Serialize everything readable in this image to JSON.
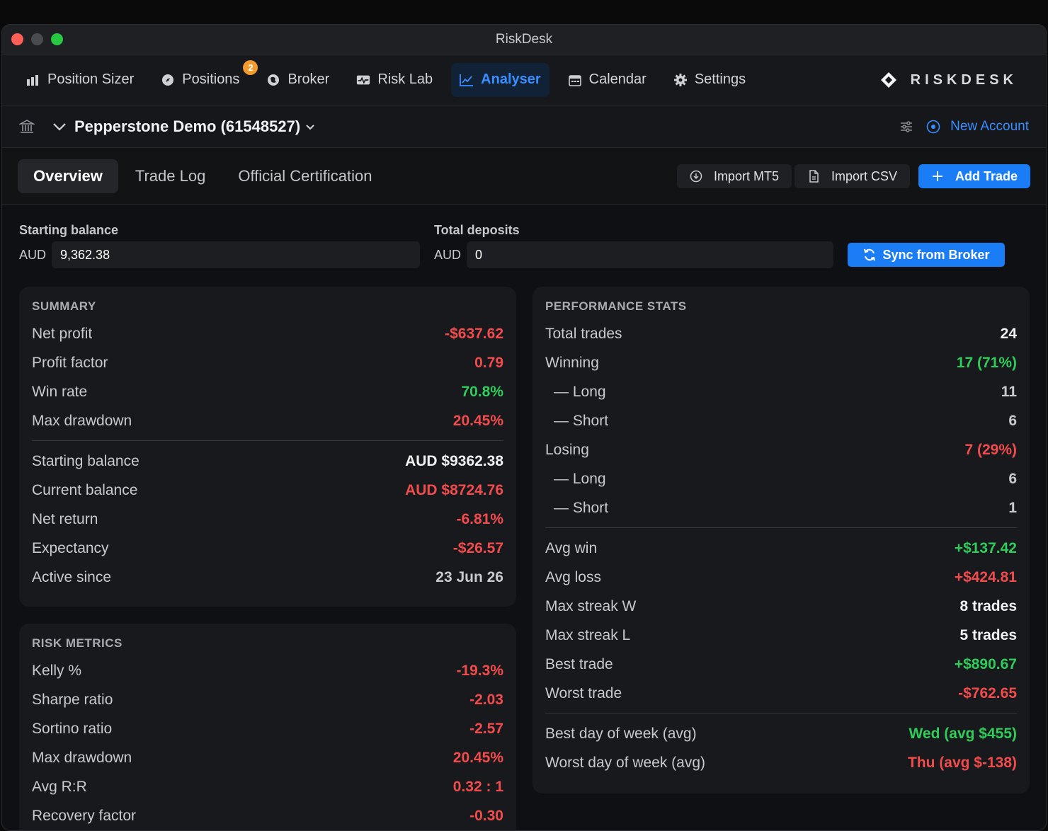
{
  "window": {
    "title": "RiskDesk"
  },
  "nav": {
    "items": [
      {
        "label": "Position Sizer",
        "icon": "bar-chart-icon"
      },
      {
        "label": "Positions",
        "icon": "compass-icon",
        "badge": "2"
      },
      {
        "label": "Broker",
        "icon": "globe-icon"
      },
      {
        "label": "Risk Lab",
        "icon": "pulse-icon"
      },
      {
        "label": "Analyser",
        "icon": "line-chart-icon",
        "active": true
      },
      {
        "label": "Calendar",
        "icon": "calendar-icon"
      },
      {
        "label": "Settings",
        "icon": "gear-icon"
      }
    ],
    "brand": "RISKDESK"
  },
  "account": {
    "name": "Pepperstone Demo (61548527)",
    "new_account": "New Account"
  },
  "tabs": {
    "items": [
      "Overview",
      "Trade Log",
      "Official Certification"
    ],
    "active": "Overview",
    "import_mt5": "Import MT5",
    "import_csv": "Import CSV",
    "add_trade": "Add Trade"
  },
  "fields": {
    "starting_balance": {
      "label": "Starting balance",
      "prefix": "AUD",
      "value": "9,362.38"
    },
    "total_deposits": {
      "label": "Total deposits",
      "prefix": "AUD",
      "value": "0"
    },
    "sync_button": "Sync from Broker"
  },
  "summary": {
    "title": "SUMMARY",
    "group1": [
      {
        "label": "Net profit",
        "value": "-$637.62",
        "tone": "neg"
      },
      {
        "label": "Profit factor",
        "value": "0.79",
        "tone": "neg"
      },
      {
        "label": "Win rate",
        "value": "70.8%",
        "tone": "pos"
      },
      {
        "label": "Max drawdown",
        "value": "20.45%",
        "tone": "neg"
      }
    ],
    "group2": [
      {
        "label": "Starting balance",
        "value": "AUD $9362.38",
        "tone": "neu"
      },
      {
        "label": "Current balance",
        "value": "AUD $8724.76",
        "tone": "neg"
      },
      {
        "label": "Net return",
        "value": "-6.81%",
        "tone": "neg"
      },
      {
        "label": "Expectancy",
        "value": "-$26.57",
        "tone": "neg"
      },
      {
        "label": "Active since",
        "value": "23 Jun 26",
        "tone": "mut"
      }
    ]
  },
  "risk": {
    "title": "RISK METRICS",
    "rows": [
      {
        "label": "Kelly %",
        "value": "-19.3%",
        "tone": "neg"
      },
      {
        "label": "Sharpe ratio",
        "value": "-2.03",
        "tone": "neg"
      },
      {
        "label": "Sortino ratio",
        "value": "-2.57",
        "tone": "neg"
      },
      {
        "label": "Max drawdown",
        "value": "20.45%",
        "tone": "neg"
      },
      {
        "label": "Avg R:R",
        "value": "0.32 : 1",
        "tone": "neg"
      },
      {
        "label": "Recovery factor",
        "value": "-0.30",
        "tone": "neg"
      }
    ]
  },
  "performance": {
    "title": "PERFORMANCE STATS",
    "group1": [
      {
        "label": "Total trades",
        "value": "24",
        "tone": "neu"
      },
      {
        "label": "Winning",
        "value": "17 (71%)",
        "tone": "pos"
      },
      {
        "label": "— Long",
        "value": "11",
        "tone": "mut",
        "sub": true
      },
      {
        "label": "— Short",
        "value": "6",
        "tone": "mut",
        "sub": true
      },
      {
        "label": "Losing",
        "value": "7 (29%)",
        "tone": "neg"
      },
      {
        "label": "— Long",
        "value": "6",
        "tone": "mut",
        "sub": true
      },
      {
        "label": "— Short",
        "value": "1",
        "tone": "mut",
        "sub": true
      }
    ],
    "group2": [
      {
        "label": "Avg win",
        "value": "+$137.42",
        "tone": "pos"
      },
      {
        "label": "Avg loss",
        "value": "+$424.81",
        "tone": "neg"
      },
      {
        "label": "Max streak W",
        "value": "8 trades",
        "tone": "neu"
      },
      {
        "label": "Max streak L",
        "value": "5 trades",
        "tone": "neu"
      },
      {
        "label": "Best trade",
        "value": "+$890.67",
        "tone": "pos"
      },
      {
        "label": "Worst trade",
        "value": "-$762.65",
        "tone": "neg"
      }
    ],
    "group3": [
      {
        "label": "Best day of week (avg)",
        "value": "Wed (avg $455)",
        "tone": "pos"
      },
      {
        "label": "Worst day of week (avg)",
        "value": "Thu (avg $-138)",
        "tone": "neg"
      }
    ]
  },
  "colors": {
    "accent": "#1a7df5",
    "negative": "#f24b4b",
    "positive": "#2fcc5a",
    "badge": "#f29a2e"
  }
}
